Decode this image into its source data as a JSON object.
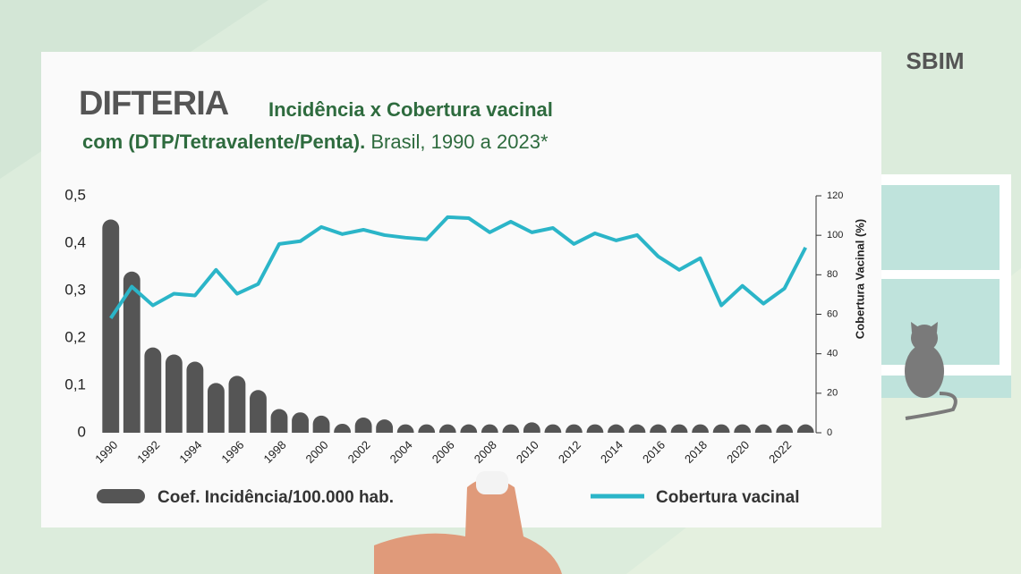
{
  "logo": "SBIM",
  "chart_data": {
    "type": "combo",
    "title": "DIFTERIA",
    "subtitle": "Incidência x Cobertura vacinal",
    "subtitle_lines": [
      "com (DTP/Tetravalente/Penta).",
      "Brasil, 1990 a 2023*"
    ],
    "y2label": "Cobertura Vacinal (%)",
    "categories": [
      "1990",
      null,
      "1992",
      null,
      "1994",
      null,
      "1996",
      null,
      "1998",
      null,
      "2000",
      null,
      "2002",
      null,
      "2004",
      null,
      "2006",
      null,
      "2008",
      null,
      "2010",
      null,
      "2012",
      null,
      "2014",
      null,
      "2016",
      null,
      "2018",
      null,
      "2020",
      null,
      "2022",
      null
    ],
    "series": [
      {
        "name": "Coef. Incidência/100.000 hab.",
        "type": "bar",
        "color": "#555555",
        "values": [
          0.45,
          0.34,
          0.18,
          0.165,
          0.15,
          0.105,
          0.12,
          0.09,
          0.05,
          0.043,
          0.036,
          0.019,
          0.032,
          0.028,
          0.01,
          0.015,
          0.006,
          0.004,
          0.006,
          0.006,
          0.022,
          0.008,
          0.002,
          0.005,
          0.007,
          0.017,
          0.004,
          0.005,
          0.002,
          0.002,
          0.002,
          0.002,
          0.002,
          0.003
        ]
      },
      {
        "name": "Cobertura vacinal",
        "type": "line",
        "axis": "y2",
        "color": "#2bb5c8",
        "values": [
          58,
          74,
          64.5,
          70.4,
          69.5,
          82.5,
          70.4,
          75.3,
          95.6,
          97,
          104.2,
          100.6,
          102.8,
          100.1,
          98.8,
          97.9,
          109.2,
          108.7,
          101.5,
          106.9,
          101.5,
          103.7,
          95.6,
          101,
          97.4,
          100.1,
          89.3,
          82.5,
          88.4,
          64.5,
          74.4,
          65.4,
          73.1,
          93.8
        ]
      }
    ],
    "ylim": [
      0,
      0.5
    ],
    "yticks": [
      0,
      {
        "value": 0.1,
        "label": "0,1"
      },
      {
        "value": 0.2,
        "label": "0,2"
      },
      {
        "value": 0.3,
        "label": "0,3"
      },
      {
        "value": 0.4,
        "label": "0,4"
      },
      {
        "value": 0.5,
        "label": "0,5"
      }
    ],
    "y2lim": [
      0,
      120
    ],
    "y2ticks": [
      0,
      20,
      40,
      60,
      80,
      100,
      120
    ],
    "legend": "bottom"
  }
}
